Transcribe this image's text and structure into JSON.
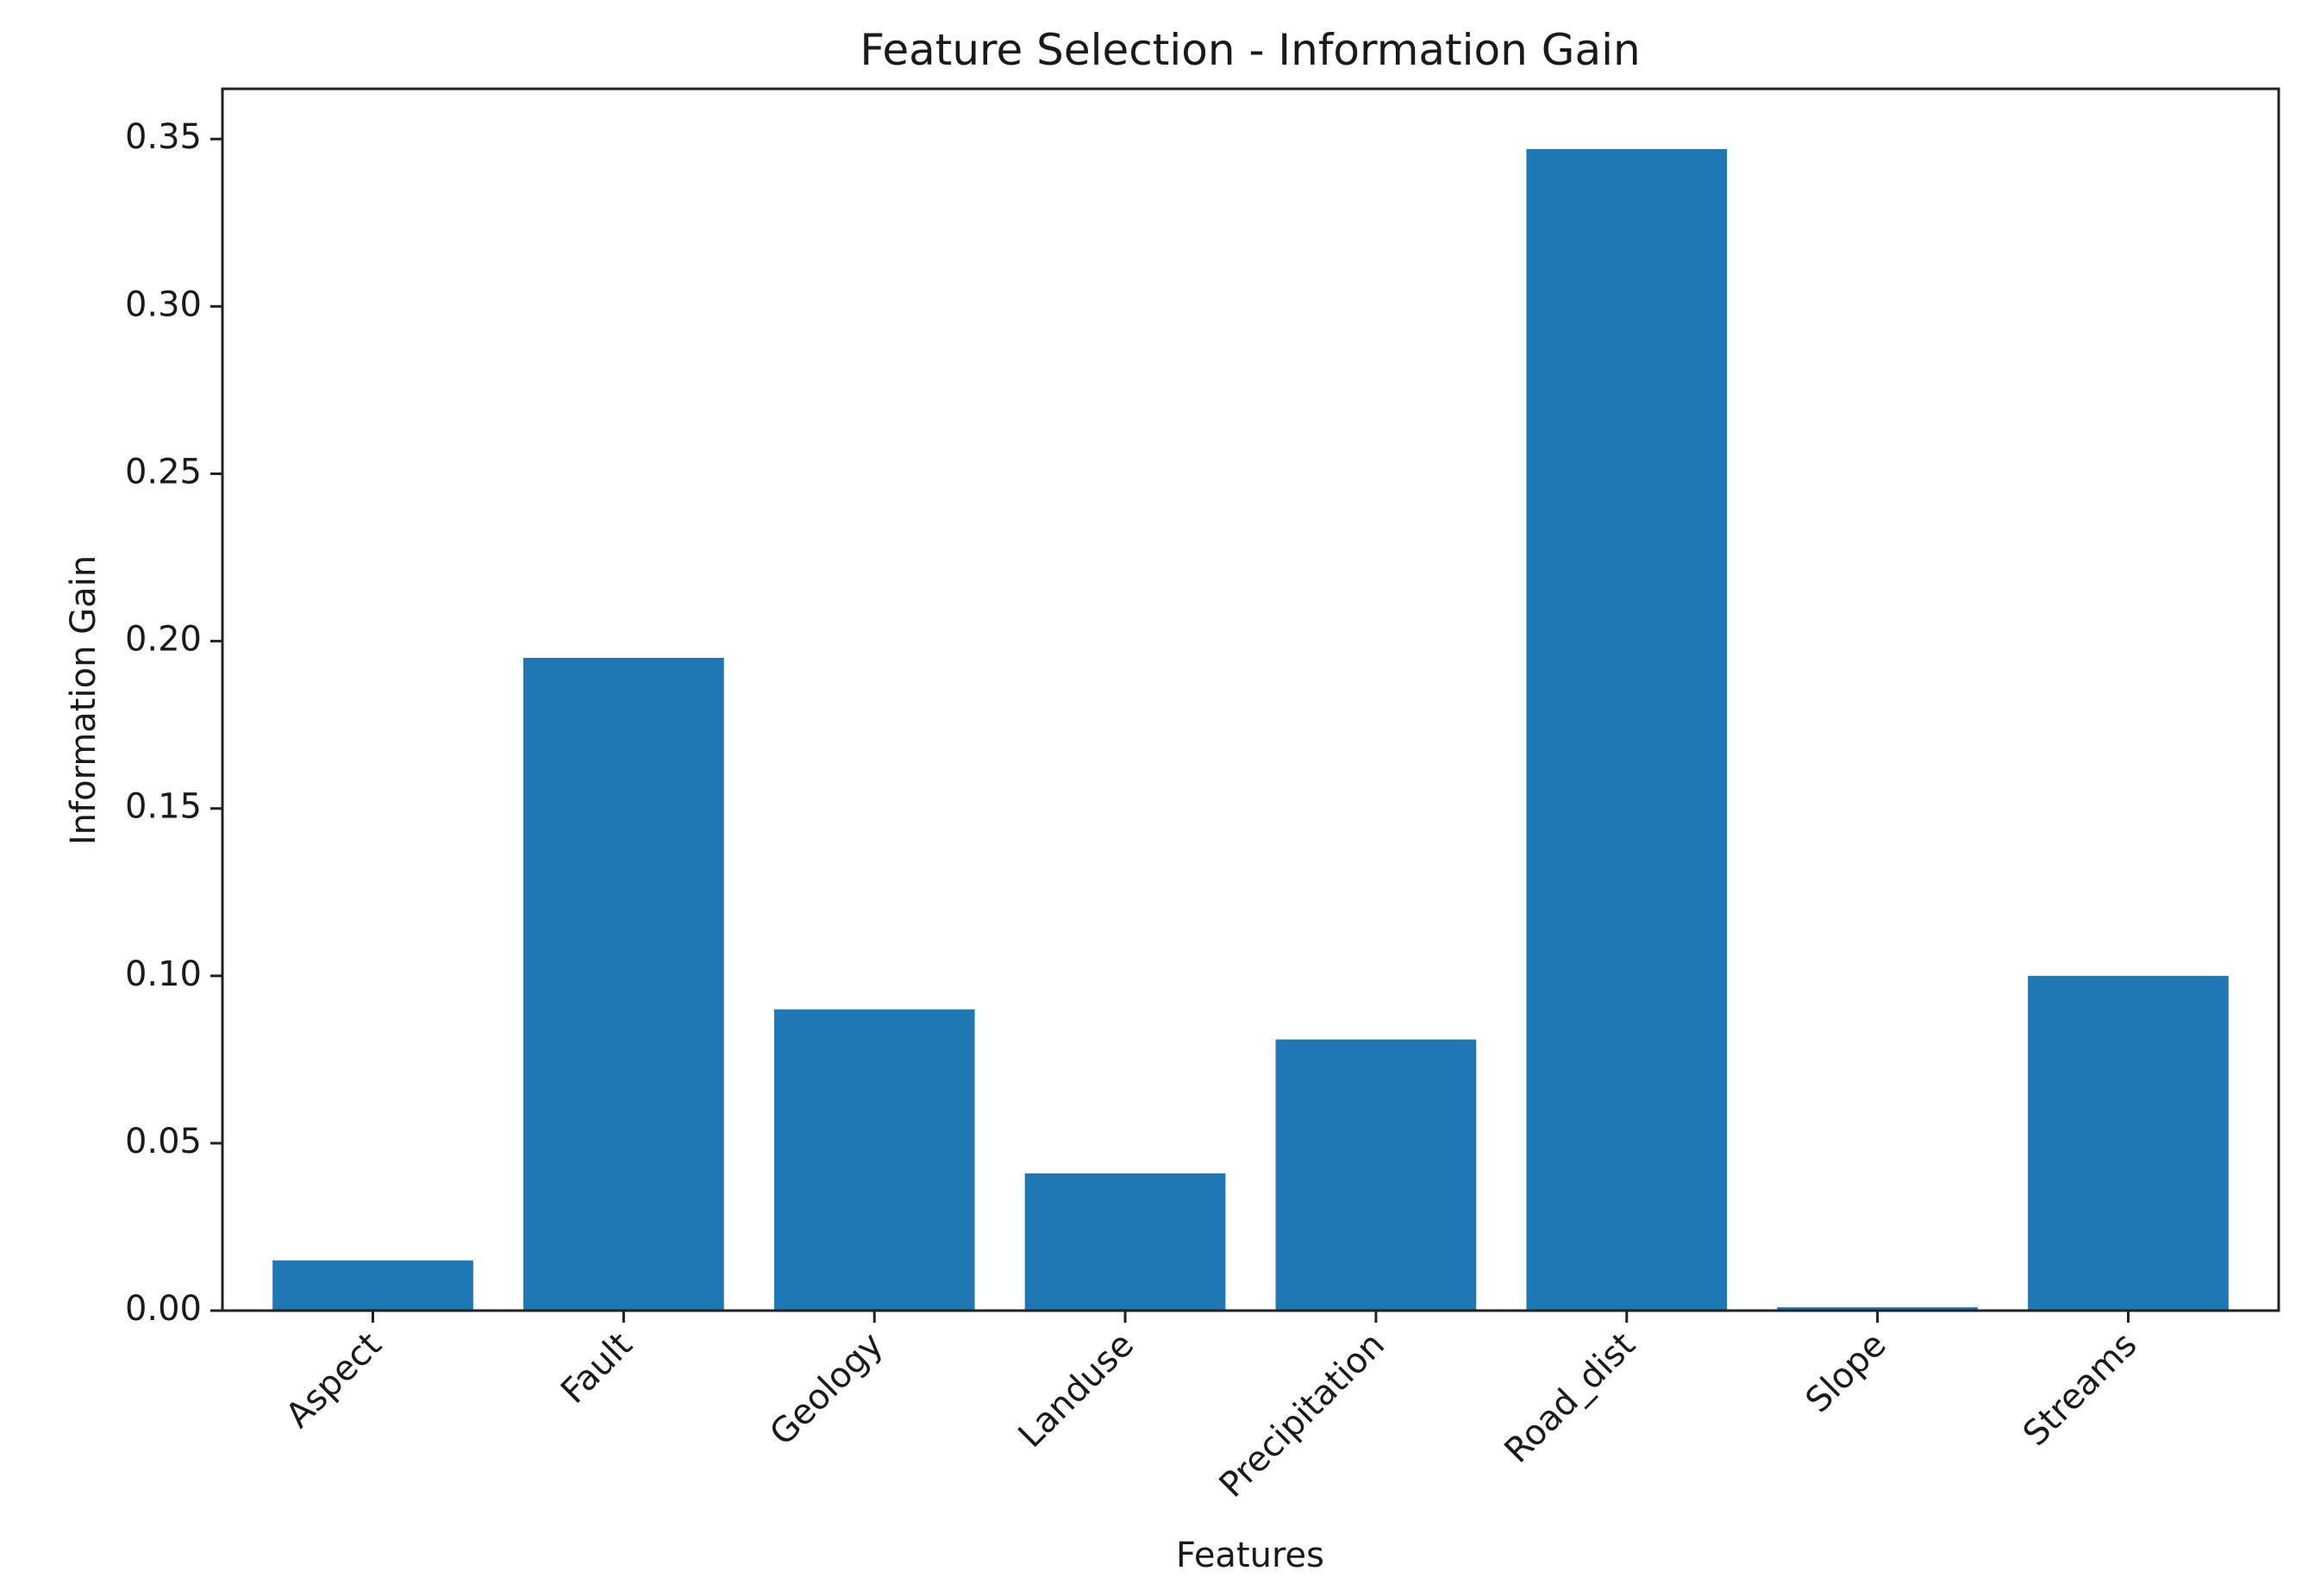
{
  "chart_data": {
    "type": "bar",
    "title": "Feature Selection - Information Gain",
    "xlabel": "Features",
    "ylabel": "Information Gain",
    "categories": [
      "Aspect",
      "Fault",
      "Geology",
      "Landuse",
      "Precipitation",
      "Road_dist",
      "Slope",
      "Streams"
    ],
    "values": [
      0.015,
      0.195,
      0.09,
      0.041,
      0.081,
      0.347,
      0.001,
      0.1
    ],
    "ylim": [
      0,
      0.365
    ],
    "yticks": [
      "0.00",
      "0.05",
      "0.10",
      "0.15",
      "0.20",
      "0.25",
      "0.30",
      "0.35"
    ],
    "grid": false,
    "bar_color": "#1f77b4"
  }
}
